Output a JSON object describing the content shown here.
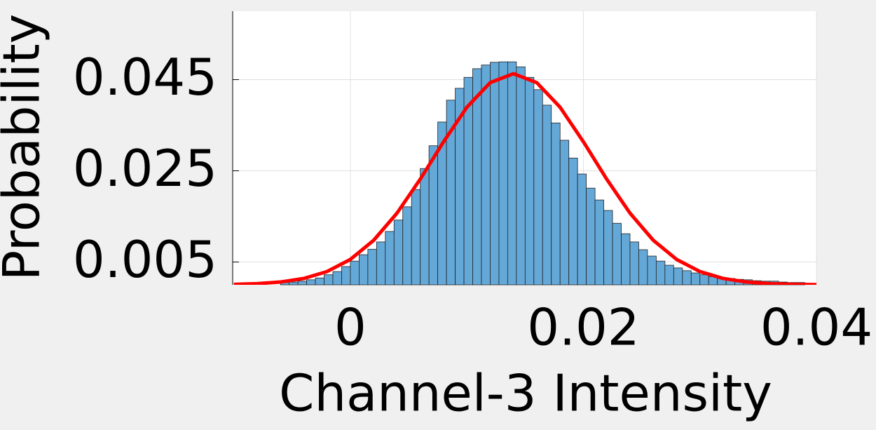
{
  "chart_data": {
    "type": "histogram",
    "x_label": "Channel-3 Intensity",
    "y_label": "Probability",
    "bins": [
      -0.006,
      -0.00525,
      -0.0045,
      -0.00375,
      -0.003,
      -0.00225,
      -0.0015,
      -0.00075,
      0,
      0.00075,
      0.0015,
      0.00225,
      0.003,
      0.00375,
      0.0045,
      0.00525,
      0.006,
      0.00675,
      0.0075,
      0.00825,
      0.009,
      0.00975,
      0.0105,
      0.01125,
      0.012,
      0.01275,
      0.0135,
      0.01425,
      0.015,
      0.01575,
      0.0165,
      0.01725,
      0.018,
      0.01875,
      0.0195,
      0.02025,
      0.021,
      0.02175,
      0.0225,
      0.02325,
      0.024,
      0.02475,
      0.0255,
      0.02625,
      0.027,
      0.02775,
      0.0285,
      0.02925,
      0.03,
      0.03075,
      0.0315,
      0.03225,
      0.033,
      0.03375,
      0.0345,
      0.03525,
      0.036,
      0.03675,
      0.0375,
      0.03825,
      0.039
    ],
    "values": [
      0.0005,
      0.0006,
      0.0008,
      0.0011,
      0.0015,
      0.0022,
      0.0029,
      0.004,
      0.0052,
      0.0066,
      0.0078,
      0.0094,
      0.0117,
      0.0142,
      0.0171,
      0.0209,
      0.0255,
      0.0305,
      0.0357,
      0.0405,
      0.0431,
      0.0455,
      0.0474,
      0.0482,
      0.0488,
      0.0489,
      0.0489,
      0.0478,
      0.0455,
      0.0428,
      0.0394,
      0.0355,
      0.0317,
      0.0278,
      0.0243,
      0.0212,
      0.0186,
      0.0163,
      0.0135,
      0.0112,
      0.0094,
      0.0077,
      0.0063,
      0.0052,
      0.0043,
      0.0037,
      0.0031,
      0.0026,
      0.0022,
      0.0018,
      0.0015,
      0.0014,
      0.0012,
      0.0011,
      0.0009,
      0.0008,
      0.0008,
      0.0006,
      0.0005,
      0.0005
    ],
    "color": "#64a8d8",
    "overlay": {
      "type": "line",
      "color": "#ff0000",
      "x": [
        -0.01,
        -0.008,
        -0.006,
        -0.004,
        -0.002,
        0,
        0.002,
        0.004,
        0.006,
        0.008,
        0.01,
        0.012,
        0.014,
        0.016,
        0.018,
        0.02,
        0.022,
        0.024,
        0.026,
        0.028,
        0.03,
        0.032,
        0.034,
        0.036,
        0.038,
        0.04
      ],
      "values": [
        0.0001,
        0.00025,
        0.00061,
        0.00139,
        0.00291,
        0.00556,
        0.00976,
        0.01571,
        0.02317,
        0.03137,
        0.03894,
        0.04434,
        0.0463,
        0.04434,
        0.03894,
        0.03137,
        0.02317,
        0.01571,
        0.00976,
        0.00556,
        0.00291,
        0.00139,
        0.00061,
        0.00025,
        0.0001,
        4e-05
      ]
    },
    "xlim": [
      -0.0101,
      0.04
    ],
    "ylim": [
      0,
      0.06
    ],
    "xticks": [
      0,
      0.02,
      0.04
    ],
    "yticks": [
      0.005,
      0.025,
      0.045
    ],
    "grid": true
  }
}
